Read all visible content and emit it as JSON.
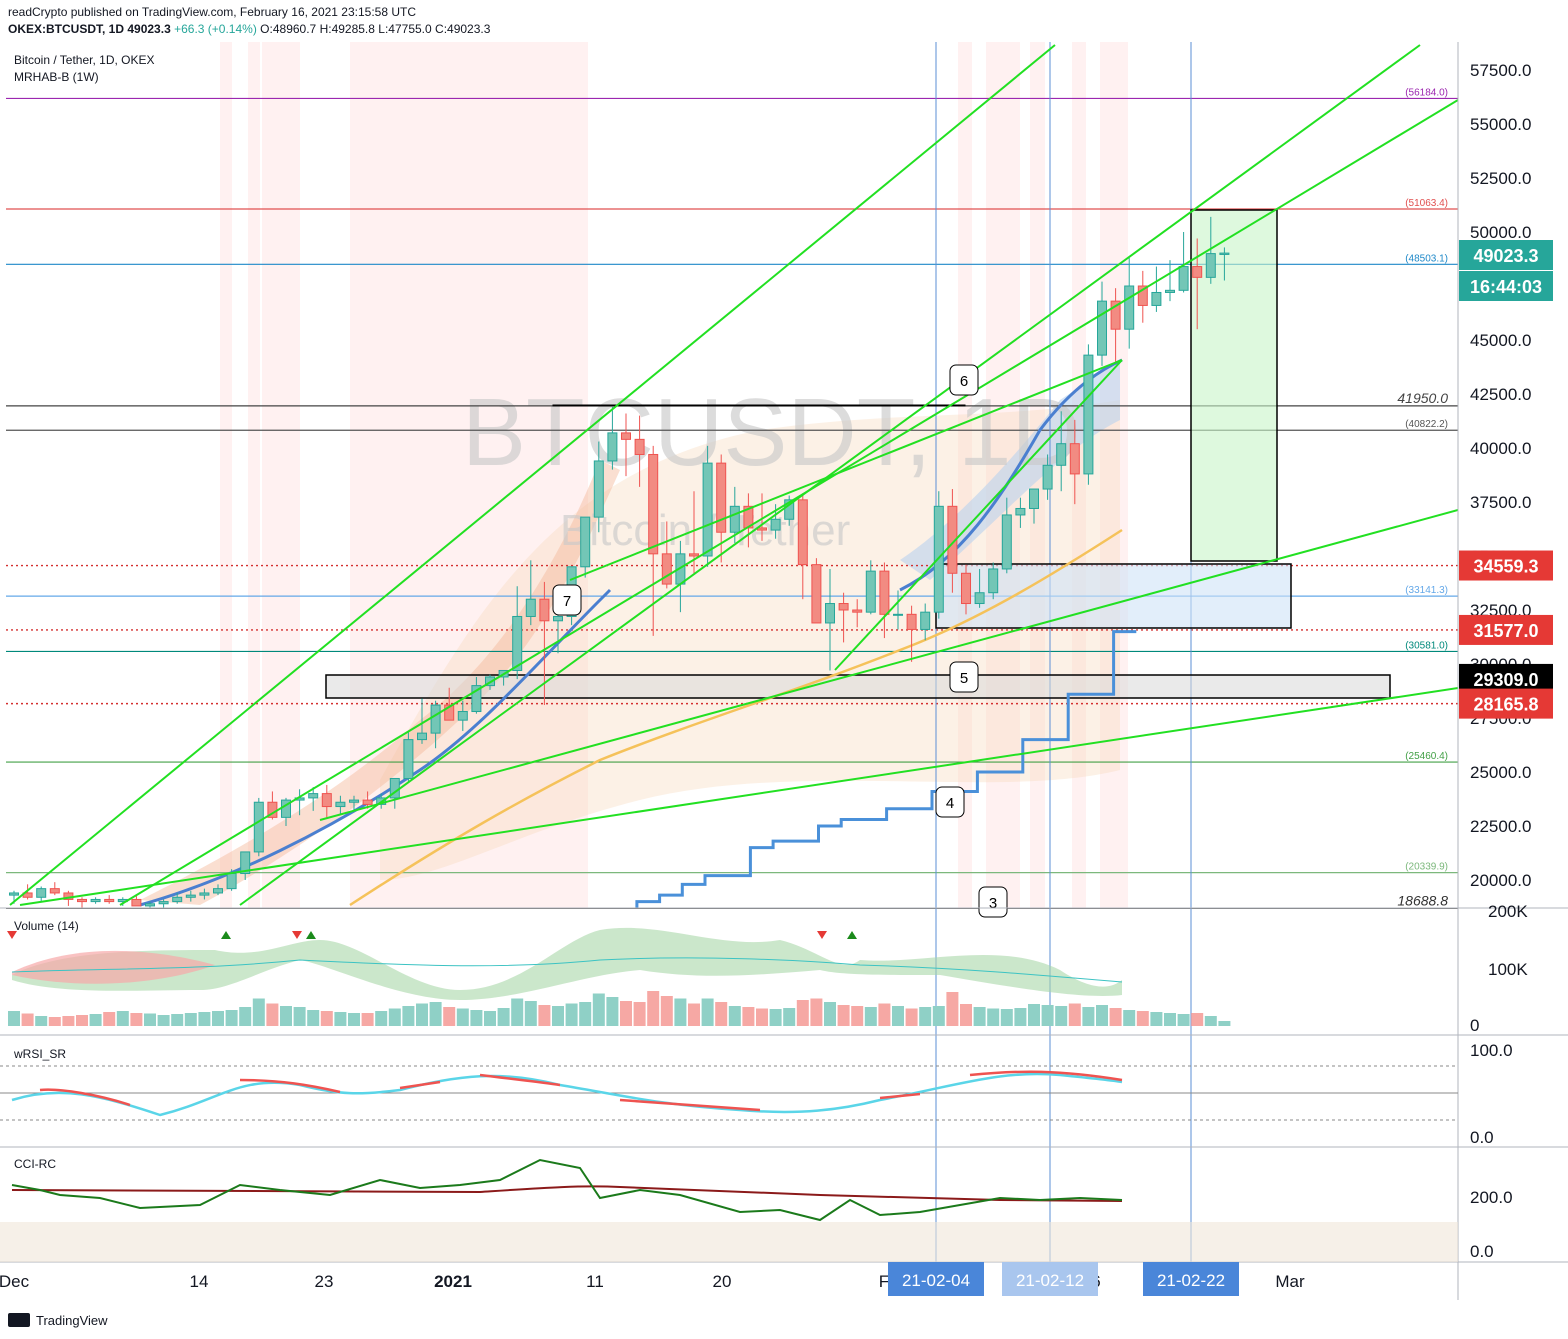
{
  "header": {
    "publish_line": "readCrypto published on TradingView.com, February 16, 2021 23:15:58 UTC",
    "symbol": "OKEX:BTCUSDT, 1D",
    "last": "49023.3",
    "change": "+66.3 (+0.14%)",
    "ohlc": {
      "o": "O:48960.7",
      "h": "H:49285.8",
      "l": "L:47755.0",
      "c": "C:49023.3"
    }
  },
  "legend": {
    "title": "Bitcoin / Tether, 1D, OKEX",
    "indicator": "MRHAB-B (1W)"
  },
  "watermark": {
    "symbol": "BTCUSDT, 1D",
    "name": "Bitcoin / Tether"
  },
  "colors": {
    "up": "#26a69a",
    "down": "#ef5350",
    "trend": "#22e022",
    "hma": "#4a90d9",
    "ma": "#f5c25a"
  },
  "chart_data": [
    {
      "type": "candlestick",
      "title": "Bitcoin / Tether, 1D, OKEX",
      "ylim": [
        18000,
        58500
      ],
      "y_ticks": [
        "20000.0",
        "22500.0",
        "25000.0",
        "27500.0",
        "30000.0",
        "32500.0",
        "35000.0",
        "37500.0",
        "40000.0",
        "42500.0",
        "45000.0",
        "47500.0",
        "50000.0",
        "52500.0",
        "55000.0",
        "57500.0"
      ],
      "x_ticks": [
        "Dec",
        "14",
        "23",
        "2021",
        "11",
        "20",
        "F",
        "21-02-04",
        "21-02-12",
        "6",
        "21-02-22",
        "Mar"
      ],
      "candles_ohlc": [
        [
          19300,
          19500,
          18900,
          19400
        ],
        [
          19400,
          19800,
          19100,
          19200
        ],
        [
          19200,
          19700,
          19000,
          19600
        ],
        [
          19600,
          19900,
          19300,
          19400
        ],
        [
          19400,
          19500,
          18800,
          19100
        ],
        [
          19100,
          19200,
          18700,
          19000
        ],
        [
          19000,
          19200,
          18900,
          19100
        ],
        [
          19100,
          19300,
          18900,
          19000
        ],
        [
          19000,
          19200,
          18800,
          19100
        ],
        [
          19100,
          19300,
          18900,
          18800
        ],
        [
          18800,
          19000,
          18500,
          18900
        ],
        [
          18900,
          19100,
          18700,
          19000
        ],
        [
          19000,
          19400,
          18900,
          19200
        ],
        [
          19200,
          19500,
          19000,
          19300
        ],
        [
          19300,
          19600,
          19100,
          19400
        ],
        [
          19400,
          19800,
          19300,
          19600
        ],
        [
          19600,
          20500,
          19500,
          20300
        ],
        [
          20300,
          21000,
          20000,
          21300
        ],
        [
          21300,
          23800,
          21100,
          23600
        ],
        [
          23600,
          24100,
          22800,
          22900
        ],
        [
          22900,
          23800,
          22500,
          23700
        ],
        [
          23700,
          24200,
          23000,
          23800
        ],
        [
          23800,
          24300,
          23200,
          24000
        ],
        [
          24000,
          24400,
          22900,
          23400
        ],
        [
          23400,
          23900,
          23000,
          23600
        ],
        [
          23600,
          23900,
          23200,
          23700
        ],
        [
          23700,
          24100,
          23300,
          23500
        ],
        [
          23500,
          24000,
          23300,
          23800
        ],
        [
          23800,
          24200,
          23300,
          24700
        ],
        [
          24700,
          26900,
          24500,
          26500
        ],
        [
          26500,
          28400,
          26300,
          26800
        ],
        [
          26800,
          28300,
          26100,
          28100
        ],
        [
          28100,
          28900,
          27800,
          27400
        ],
        [
          27400,
          28300,
          26900,
          27800
        ],
        [
          27800,
          29400,
          27700,
          29000
        ],
        [
          29000,
          29500,
          28800,
          29400
        ],
        [
          29400,
          29700,
          29000,
          29700
        ],
        [
          29700,
          33600,
          29300,
          32200
        ],
        [
          32200,
          34800,
          31800,
          33000
        ],
        [
          33000,
          33800,
          28100,
          32000
        ],
        [
          32000,
          33400,
          30500,
          32200
        ],
        [
          32200,
          33300,
          31800,
          34500
        ],
        [
          34500,
          36600,
          34000,
          36800
        ],
        [
          36800,
          40300,
          36100,
          39400
        ],
        [
          39400,
          41900,
          39000,
          40700
        ],
        [
          40700,
          41600,
          38700,
          40400
        ],
        [
          40400,
          41500,
          38200,
          39700
        ],
        [
          39700,
          40100,
          31300,
          35100
        ],
        [
          35100,
          36600,
          33500,
          33700
        ],
        [
          33700,
          35700,
          32400,
          35100
        ],
        [
          35100,
          38000,
          34200,
          35000
        ],
        [
          35000,
          40100,
          34500,
          39300
        ],
        [
          39300,
          39700,
          34700,
          36100
        ],
        [
          36100,
          38200,
          35600,
          37300
        ],
        [
          37300,
          37900,
          35400,
          36300
        ],
        [
          36300,
          37900,
          35700,
          36200
        ],
        [
          36200,
          37400,
          35800,
          36700
        ],
        [
          36700,
          37800,
          36400,
          37600
        ],
        [
          37600,
          37900,
          33000,
          34600
        ],
        [
          34600,
          34900,
          32300,
          31900
        ],
        [
          31900,
          34400,
          29700,
          32800
        ],
        [
          32800,
          33300,
          31000,
          32500
        ],
        [
          32500,
          33000,
          31700,
          32400
        ],
        [
          32400,
          34800,
          32300,
          34300
        ],
        [
          34300,
          34700,
          31200,
          32300
        ],
        [
          32300,
          33400,
          31600,
          32300
        ],
        [
          32300,
          32700,
          30100,
          31600
        ],
        [
          31600,
          32800,
          31100,
          32400
        ],
        [
          32400,
          38000,
          32100,
          37300
        ],
        [
          37300,
          38100,
          33300,
          34200
        ],
        [
          34200,
          34600,
          32300,
          32800
        ],
        [
          32800,
          34400,
          32600,
          33300
        ],
        [
          33300,
          34700,
          33000,
          34400
        ],
        [
          34400,
          37700,
          34200,
          36900
        ],
        [
          36900,
          37700,
          36300,
          37200
        ],
        [
          37200,
          37900,
          36500,
          38100
        ],
        [
          38100,
          39700,
          37600,
          39200
        ],
        [
          39200,
          41700,
          38000,
          40200
        ],
        [
          40200,
          41300,
          37400,
          38800
        ],
        [
          38800,
          44800,
          38300,
          44300
        ],
        [
          44300,
          47700,
          43800,
          46800
        ],
        [
          46800,
          47400,
          44000,
          45500
        ],
        [
          45500,
          48800,
          44600,
          47500
        ],
        [
          47500,
          48200,
          45800,
          46600
        ],
        [
          46600,
          48400,
          46300,
          47200
        ],
        [
          47200,
          48700,
          46800,
          47300
        ],
        [
          47300,
          50000,
          47200,
          48400
        ],
        [
          48400,
          49700,
          45500,
          47900
        ],
        [
          47900,
          50700,
          47600,
          49000
        ],
        [
          48960.7,
          49285.8,
          47755.0,
          49023.3
        ]
      ],
      "horizontal_levels": [
        {
          "value": 56184.0,
          "label": "(56184.0)",
          "color": "#9c27b0"
        },
        {
          "value": 51063.4,
          "label": "(51063.4)",
          "color": "#e05050"
        },
        {
          "value": 48503.1,
          "label": "(48503.1)",
          "color": "#1e88c8"
        },
        {
          "value": 41950.0,
          "label": "41950.0",
          "color": "#444444"
        },
        {
          "value": 40822.2,
          "label": "(40822.2)",
          "color": "#555555"
        },
        {
          "value": 33141.3,
          "label": "(33141.3)",
          "color": "#64a8e8"
        },
        {
          "value": 30581.0,
          "label": "(30581.0)",
          "color": "#00897b"
        },
        {
          "value": 25460.4,
          "label": "(25460.4)",
          "color": "#43a047"
        },
        {
          "value": 20339.9,
          "label": "(20339.9)",
          "color": "#7cb87c"
        },
        {
          "value": 18688.8,
          "label": "18688.8",
          "color": "#333333"
        }
      ],
      "price_badges": [
        {
          "value": 49023.3,
          "label": "49023.3",
          "color": "#26a69a"
        },
        {
          "value": 48200,
          "label": "16:44:03",
          "color": "#26a69a"
        },
        {
          "value": 34559.3,
          "label": "34559.3",
          "color": "#e53935"
        },
        {
          "value": 31577.0,
          "label": "31577.0",
          "color": "#e53935"
        },
        {
          "value": 29309.0,
          "label": "29309.0",
          "color": "#000000"
        },
        {
          "value": 28165.8,
          "label": "28165.8",
          "color": "#e53935"
        }
      ],
      "annotations": [
        "7",
        "6",
        "5",
        "4",
        "3"
      ],
      "series": [
        {
          "name": "MRHAB-B (1W)",
          "values": [
            17000,
            17200,
            17500,
            17500,
            18000,
            18300,
            18300,
            19000,
            19300,
            19800,
            20200,
            20200,
            21500,
            21800,
            21800,
            22500,
            22800,
            22800,
            23300,
            23300,
            24100,
            24100,
            25000,
            25000,
            26500,
            26500,
            28600,
            28600,
            31500
          ]
        }
      ]
    },
    {
      "type": "bar",
      "title": "Volume (14)",
      "y_ticks": [
        "200K",
        "100K",
        "0"
      ],
      "values": [
        30,
        25,
        20,
        18,
        20,
        22,
        24,
        28,
        30,
        26,
        25,
        22,
        24,
        26,
        28,
        30,
        32,
        38,
        55,
        45,
        40,
        38,
        32,
        30,
        28,
        26,
        26,
        30,
        35,
        40,
        45,
        48,
        38,
        35,
        32,
        30,
        36,
        55,
        50,
        42,
        40,
        45,
        48,
        65,
        58,
        50,
        48,
        70,
        60,
        55,
        45,
        55,
        48,
        40,
        38,
        35,
        34,
        36,
        52,
        55,
        48,
        42,
        40,
        38,
        45,
        40,
        35,
        38,
        40,
        68,
        44,
        38,
        35,
        34,
        36,
        44,
        42,
        40,
        45,
        38,
        42,
        36,
        32,
        30,
        28,
        26,
        24,
        26,
        20,
        10
      ]
    },
    {
      "type": "line",
      "title": "wRSI_SR",
      "y_ticks": [
        "100.0",
        "0.0"
      ],
      "ylim": [
        0,
        100
      ]
    },
    {
      "type": "line",
      "title": "CCI-RC",
      "y_ticks": [
        "200.0",
        "0.0"
      ]
    }
  ],
  "time_badges": [
    "21-02-04",
    "21-02-12",
    "21-02-22"
  ],
  "footer": {
    "brand": "TradingView"
  }
}
